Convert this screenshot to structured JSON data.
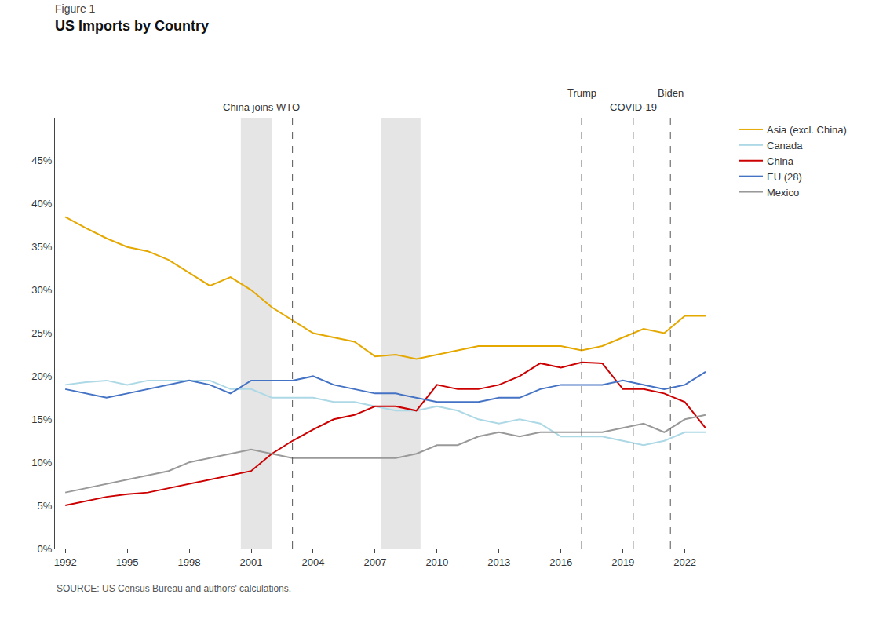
{
  "chart_data": {
    "type": "line",
    "title": "US Imports by Country",
    "subtitle": "Figure 1",
    "source": "SOURCE: US Census Bureau and authors' calculations.",
    "x": [
      1992,
      1993,
      1994,
      1995,
      1996,
      1997,
      1998,
      1999,
      2000,
      2001,
      2002,
      2003,
      2004,
      2005,
      2006,
      2007,
      2008,
      2009,
      2010,
      2011,
      2012,
      2013,
      2014,
      2015,
      2016,
      2017,
      2018,
      2019,
      2020,
      2021,
      2022,
      2023
    ],
    "series": [
      {
        "name": "Asia (excl. China)",
        "color": "#E5A800",
        "values": [
          38.5,
          37.2,
          36.0,
          35.0,
          34.5,
          33.5,
          32.0,
          30.5,
          31.5,
          30.0,
          28.0,
          26.5,
          25.0,
          24.5,
          24.0,
          22.3,
          22.5,
          22.0,
          22.5,
          23.0,
          23.5,
          23.5,
          23.5,
          23.5,
          23.5,
          23.0,
          23.5,
          24.5,
          25.5,
          25.0,
          27.0,
          27.0
        ]
      },
      {
        "name": "Canada",
        "color": "#ADD8E6",
        "values": [
          19.0,
          19.3,
          19.5,
          19.0,
          19.5,
          19.5,
          19.5,
          19.5,
          18.5,
          18.5,
          17.5,
          17.5,
          17.5,
          17.0,
          17.0,
          16.5,
          16.0,
          16.0,
          16.5,
          16.0,
          15.0,
          14.5,
          15.0,
          14.5,
          13.0,
          13.0,
          13.0,
          12.5,
          12.0,
          12.5,
          13.5,
          13.5
        ]
      },
      {
        "name": "China",
        "color": "#CC0000",
        "values": [
          5.0,
          5.5,
          6.0,
          6.3,
          6.5,
          7.0,
          7.5,
          8.0,
          8.5,
          9.0,
          11.0,
          12.5,
          13.8,
          15.0,
          15.5,
          16.5,
          16.5,
          16.0,
          19.0,
          18.5,
          18.5,
          19.0,
          20.0,
          21.5,
          21.0,
          21.6,
          21.5,
          18.5,
          18.5,
          18.0,
          17.0,
          14.0
        ]
      },
      {
        "name": "EU (28)",
        "color": "#4472C4",
        "values": [
          18.5,
          18.0,
          17.5,
          18.0,
          18.5,
          19.0,
          19.5,
          19.0,
          18.0,
          19.5,
          19.5,
          19.5,
          20.0,
          19.0,
          18.5,
          18.0,
          18.0,
          17.5,
          17.0,
          17.0,
          17.0,
          17.5,
          17.5,
          18.5,
          19.0,
          19.0,
          19.0,
          19.5,
          19.0,
          18.5,
          19.0,
          20.5
        ]
      },
      {
        "name": "Mexico",
        "color": "#999999",
        "values": [
          6.5,
          7.0,
          7.5,
          8.0,
          8.5,
          9.0,
          10.0,
          10.5,
          11.0,
          11.5,
          11.0,
          10.5,
          10.5,
          10.5,
          10.5,
          10.5,
          10.5,
          11.0,
          12.0,
          12.0,
          13.0,
          13.5,
          13.0,
          13.5,
          13.5,
          13.5,
          13.5,
          14.0,
          14.5,
          13.5,
          15.0,
          15.5
        ]
      }
    ],
    "shaded_regions": [
      [
        2000.5,
        2002.0
      ],
      [
        2007.3,
        2009.2
      ]
    ],
    "dashed_lines": [
      2003.0,
      2017.0,
      2019.5,
      2021.3
    ],
    "annotations": [
      {
        "x": 2001.5,
        "text": "China joins WTO"
      },
      {
        "x": 2017.0,
        "text": "Trump"
      },
      {
        "x": 2019.5,
        "text": "COVID-19"
      },
      {
        "x": 2021.3,
        "text": "Biden"
      }
    ],
    "xlim": [
      1991.5,
      2023.8
    ],
    "xticks": [
      1992,
      1995,
      1998,
      2001,
      2004,
      2007,
      2010,
      2013,
      2016,
      2019,
      2022
    ],
    "ylim": [
      0,
      50
    ],
    "yticks": [
      {
        "value": 0,
        "label": "0%"
      },
      {
        "value": 5,
        "label": "5%"
      },
      {
        "value": 10,
        "label": "10%"
      },
      {
        "value": 15,
        "label": "15%"
      },
      {
        "value": 20,
        "label": "20%"
      },
      {
        "value": 25,
        "label": "25%"
      },
      {
        "value": 30,
        "label": "30%"
      },
      {
        "value": 35,
        "label": "35%"
      },
      {
        "value": 40,
        "label": "40%"
      },
      {
        "value": 45,
        "label": "45%"
      }
    ],
    "grid": false,
    "legend": "right"
  }
}
